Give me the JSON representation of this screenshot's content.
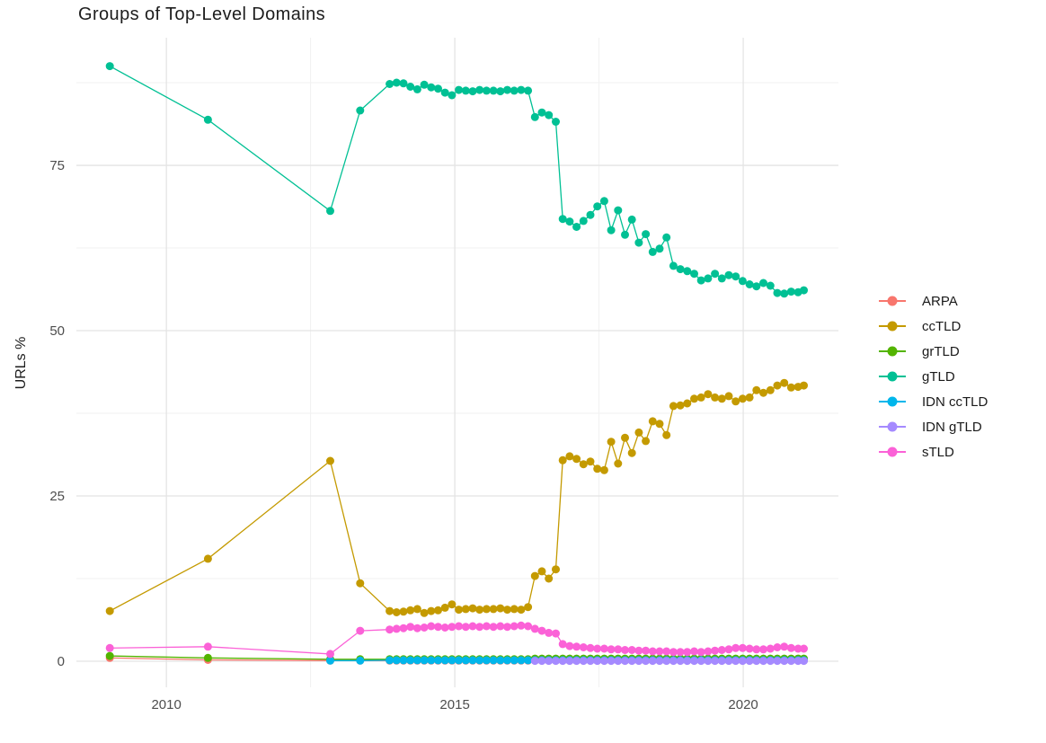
{
  "page": {
    "background": "#FFFFFF"
  },
  "chart_data": {
    "type": "line",
    "title": "Groups of Top-Level Domains",
    "ylabel": "URLs %",
    "xlabel": "",
    "legend_position": "right",
    "grid": {
      "major_color": "#E4E4E4",
      "minor_color": "#F1F1F1",
      "visible": true
    },
    "axis_text_color": "#4D4D4D",
    "x_axis": {
      "lim": [
        2008.44,
        2021.65
      ],
      "ticks": [
        2010,
        2015,
        2020
      ],
      "minor": [
        2012.5,
        2017.5
      ]
    },
    "y_axis": {
      "lim": [
        -3.94,
        94.3
      ],
      "ticks": [
        0,
        25,
        50,
        75
      ],
      "minor": [
        12.5,
        37.5,
        62.5,
        87.5
      ]
    },
    "x_common": [
      2009.02,
      2010.72,
      2012.84,
      2013.36,
      2013.87,
      2013.99,
      2014.11,
      2014.23,
      2014.35,
      2014.47,
      2014.59,
      2014.71,
      2014.83,
      2014.95,
      2015.07,
      2015.19,
      2015.31,
      2015.43,
      2015.55,
      2015.67,
      2015.79,
      2015.91,
      2016.03,
      2016.15,
      2016.27,
      2016.39,
      2016.51,
      2016.63,
      2016.75,
      2016.87,
      2016.99,
      2017.11,
      2017.23,
      2017.35,
      2017.47,
      2017.59,
      2017.71,
      2017.83,
      2017.95,
      2018.07,
      2018.19,
      2018.31,
      2018.43,
      2018.55,
      2018.67,
      2018.79,
      2018.91,
      2019.03,
      2019.15,
      2019.27,
      2019.39,
      2019.51,
      2019.63,
      2019.75,
      2019.87,
      2019.99,
      2020.11,
      2020.23,
      2020.35,
      2020.47,
      2020.59,
      2020.71,
      2020.83,
      2020.95,
      2021.05
    ],
    "series": [
      {
        "name": "ARPA",
        "color": "#F8766D",
        "x_offset": 0,
        "y": [
          0.5,
          0.2,
          0.1,
          0.1,
          0.1,
          0.1,
          0.1,
          0.1,
          0.1,
          0.1,
          0.1,
          0.1,
          0.1,
          0.1,
          0.1,
          0.1,
          0.1,
          0.1,
          0.1,
          0.1,
          0.1,
          0.1,
          0.1,
          0.1,
          0.1,
          0.1,
          0.1,
          0.1,
          0.1,
          0.1,
          0.1,
          0.1,
          0.1,
          0.1,
          0.1,
          0.1,
          0.1,
          0.1,
          0.1,
          0.1,
          0.1,
          0.1,
          0.1,
          0.1,
          0.1,
          0.1,
          0.1,
          0.1,
          0.1,
          0.1,
          0.1,
          0.1,
          0.1,
          0.1,
          0.1,
          0.1,
          0.1,
          0.1,
          0.1,
          0.1,
          0.1,
          0.1,
          0.1,
          0.1,
          0.1
        ]
      },
      {
        "name": "ccTLD",
        "color": "#C49A00",
        "x_offset": 0,
        "y": [
          7.6,
          15.5,
          30.3,
          11.8,
          7.6,
          7.4,
          7.5,
          7.7,
          7.9,
          7.3,
          7.6,
          7.7,
          8.1,
          8.6,
          7.8,
          7.9,
          8.0,
          7.8,
          7.9,
          7.9,
          8.0,
          7.8,
          7.9,
          7.8,
          8.2,
          12.9,
          13.6,
          12.5,
          13.9,
          30.4,
          31.0,
          30.6,
          29.8,
          30.2,
          29.1,
          28.9,
          33.2,
          29.9,
          33.8,
          31.5,
          34.6,
          33.3,
          36.3,
          35.9,
          34.2,
          38.6,
          38.7,
          39.0,
          39.7,
          39.9,
          40.4,
          39.9,
          39.7,
          40.1,
          39.3,
          39.7,
          39.9,
          41.0,
          40.6,
          41.0,
          41.7,
          42.1,
          41.4,
          41.5,
          41.7
        ]
      },
      {
        "name": "grTLD",
        "color": "#53B400",
        "x_offset": 0,
        "y": [
          0.8,
          0.5,
          0.3,
          0.3,
          0.3,
          0.3,
          0.3,
          0.3,
          0.3,
          0.3,
          0.3,
          0.3,
          0.3,
          0.3,
          0.3,
          0.3,
          0.3,
          0.3,
          0.3,
          0.3,
          0.3,
          0.3,
          0.3,
          0.3,
          0.3,
          0.4,
          0.4,
          0.4,
          0.4,
          0.4,
          0.4,
          0.4,
          0.4,
          0.4,
          0.4,
          0.4,
          0.4,
          0.4,
          0.4,
          0.4,
          0.4,
          0.4,
          0.4,
          0.4,
          0.4,
          0.4,
          0.4,
          0.4,
          0.4,
          0.4,
          0.4,
          0.4,
          0.4,
          0.4,
          0.4,
          0.4,
          0.4,
          0.4,
          0.4,
          0.4,
          0.4,
          0.4,
          0.4,
          0.4,
          0.4
        ]
      },
      {
        "name": "gTLD",
        "color": "#00C094",
        "x_offset": 0,
        "y": [
          90.0,
          81.9,
          68.1,
          83.3,
          87.3,
          87.5,
          87.4,
          86.9,
          86.5,
          87.2,
          86.8,
          86.6,
          86.0,
          85.6,
          86.4,
          86.3,
          86.2,
          86.4,
          86.3,
          86.3,
          86.2,
          86.4,
          86.3,
          86.4,
          86.3,
          82.3,
          83.0,
          82.6,
          81.6,
          66.9,
          66.5,
          65.7,
          66.6,
          67.5,
          68.8,
          69.6,
          65.2,
          68.2,
          64.5,
          66.8,
          63.3,
          64.6,
          61.9,
          62.4,
          64.1,
          59.8,
          59.3,
          59.0,
          58.6,
          57.6,
          57.9,
          58.6,
          57.9,
          58.4,
          58.2,
          57.5,
          57.0,
          56.7,
          57.2,
          56.8,
          55.7,
          55.6,
          55.9,
          55.8,
          56.1
        ]
      },
      {
        "name": "IDN ccTLD",
        "color": "#00B6EB",
        "x_offset": 2,
        "y": [
          0.1,
          0.1,
          0.15,
          0.15,
          0.15,
          0.15,
          0.15,
          0.15,
          0.15,
          0.15,
          0.15,
          0.15,
          0.15,
          0.15,
          0.15,
          0.15,
          0.15,
          0.15,
          0.15,
          0.15,
          0.15,
          0.15,
          0.15,
          0.15,
          0.15,
          0.15,
          0.15,
          0.15,
          0.15,
          0.15,
          0.15,
          0.15,
          0.15,
          0.15,
          0.15,
          0.15,
          0.15,
          0.15,
          0.15,
          0.15,
          0.15,
          0.15,
          0.15,
          0.15,
          0.15,
          0.15,
          0.15,
          0.15,
          0.15,
          0.15,
          0.15,
          0.15,
          0.15,
          0.15,
          0.15,
          0.15,
          0.15,
          0.15,
          0.15,
          0.15,
          0.15,
          0.15,
          0.15
        ]
      },
      {
        "name": "IDN gTLD",
        "color": "#A58AFF",
        "x_offset": 25,
        "y": [
          0.05,
          0.05,
          0.05,
          0.05,
          0.05,
          0.05,
          0.05,
          0.05,
          0.05,
          0.05,
          0.05,
          0.05,
          0.05,
          0.05,
          0.05,
          0.05,
          0.05,
          0.05,
          0.05,
          0.05,
          0.05,
          0.05,
          0.05,
          0.05,
          0.05,
          0.05,
          0.05,
          0.05,
          0.05,
          0.05,
          0.05,
          0.05,
          0.05,
          0.05,
          0.05,
          0.05,
          0.05,
          0.05,
          0.05,
          0.05
        ]
      },
      {
        "name": "sTLD",
        "color": "#FB61D7",
        "x_offset": 0,
        "y": [
          2.0,
          2.2,
          1.1,
          4.6,
          4.8,
          4.9,
          5.0,
          5.2,
          5.0,
          5.1,
          5.3,
          5.2,
          5.1,
          5.2,
          5.3,
          5.2,
          5.3,
          5.2,
          5.3,
          5.2,
          5.3,
          5.2,
          5.3,
          5.4,
          5.3,
          4.9,
          4.6,
          4.3,
          4.2,
          2.6,
          2.3,
          2.2,
          2.1,
          2.0,
          1.9,
          1.9,
          1.8,
          1.8,
          1.7,
          1.7,
          1.6,
          1.6,
          1.5,
          1.5,
          1.5,
          1.4,
          1.4,
          1.4,
          1.5,
          1.4,
          1.5,
          1.6,
          1.7,
          1.8,
          2.0,
          2.0,
          1.9,
          1.8,
          1.8,
          1.9,
          2.1,
          2.2,
          2.0,
          1.9,
          1.9
        ]
      }
    ],
    "legend_entries": [
      "ARPA",
      "ccTLD",
      "grTLD",
      "gTLD",
      "IDN ccTLD",
      "IDN gTLD",
      "sTLD"
    ]
  }
}
